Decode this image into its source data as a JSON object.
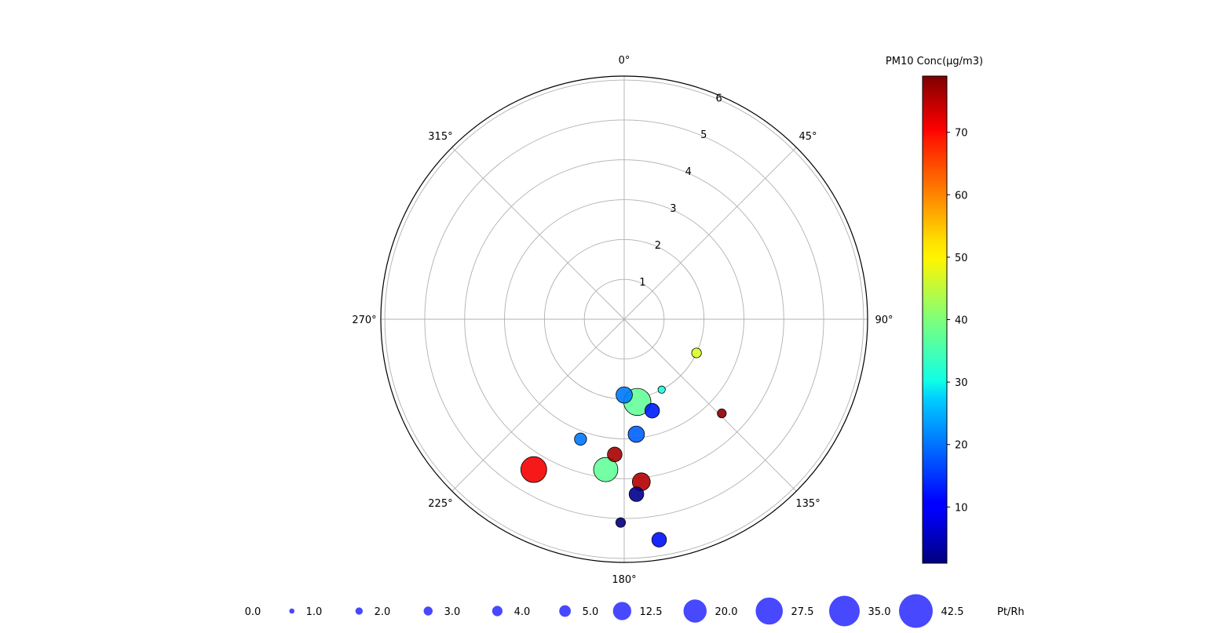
{
  "chart_data": {
    "type": "polar-scatter",
    "theta_zero": "N",
    "theta_direction": "clockwise",
    "angle_tick_labels": [
      "0°",
      "45°",
      "90°",
      "135°",
      "180°",
      "225°",
      "270°",
      "315°"
    ],
    "angle_tick_values": [
      0,
      45,
      90,
      135,
      180,
      225,
      270,
      315
    ],
    "radial_tick_labels": [
      "1",
      "2",
      "3",
      "4",
      "5",
      "6"
    ],
    "radial_tick_values": [
      1,
      2,
      3,
      4,
      5,
      6
    ],
    "rlim": [
      0,
      6.1
    ],
    "grid": true,
    "colorbar": {
      "label": "PM10 Conc(µg/m3)",
      "colormap": "jet",
      "range": [
        1,
        79
      ],
      "tick_values": [
        10,
        20,
        30,
        40,
        50,
        60,
        70
      ],
      "tick_labels": [
        "10",
        "20",
        "30",
        "40",
        "50",
        "60",
        "70"
      ]
    },
    "size_legend": {
      "unit": "Pt/Rh",
      "values": [
        0.0,
        1.0,
        2.0,
        3.0,
        4.0,
        5.0,
        12.5,
        20.0,
        27.5,
        35.0,
        42.5
      ],
      "labels": [
        "0.0",
        "1.0",
        "2.0",
        "3.0",
        "4.0",
        "5.0",
        "12.5",
        "20.0",
        "27.5",
        "35.0",
        "42.5"
      ]
    },
    "points": [
      {
        "theta": 115,
        "r": 2.0,
        "pm10": 47,
        "size": 3.5
      },
      {
        "theta": 134,
        "r": 3.4,
        "pm10": 78,
        "size": 3.0
      },
      {
        "theta": 152,
        "r": 2.0,
        "pm10": 33,
        "size": 2.0
      },
      {
        "theta": 171,
        "r": 2.1,
        "pm10": 38,
        "size": 27.5
      },
      {
        "theta": 180,
        "r": 1.9,
        "pm10": 20,
        "size": 10.0
      },
      {
        "theta": 163,
        "r": 2.4,
        "pm10": 13,
        "size": 8.0
      },
      {
        "theta": 174,
        "r": 2.9,
        "pm10": 18,
        "size": 10.0
      },
      {
        "theta": 200,
        "r": 3.2,
        "pm10": 20,
        "size": 5.5
      },
      {
        "theta": 184,
        "r": 3.4,
        "pm10": 76,
        "size": 8.0
      },
      {
        "theta": 187,
        "r": 3.8,
        "pm10": 38,
        "size": 22.0
      },
      {
        "theta": 174,
        "r": 4.1,
        "pm10": 75,
        "size": 12.0
      },
      {
        "theta": 211,
        "r": 4.4,
        "pm10": 70,
        "size": 25.0
      },
      {
        "theta": 176,
        "r": 4.4,
        "pm10": 2,
        "size": 8.0
      },
      {
        "theta": 181,
        "r": 5.1,
        "pm10": 1,
        "size": 3.5
      },
      {
        "theta": 171,
        "r": 5.6,
        "pm10": 12,
        "size": 8.0
      }
    ]
  }
}
